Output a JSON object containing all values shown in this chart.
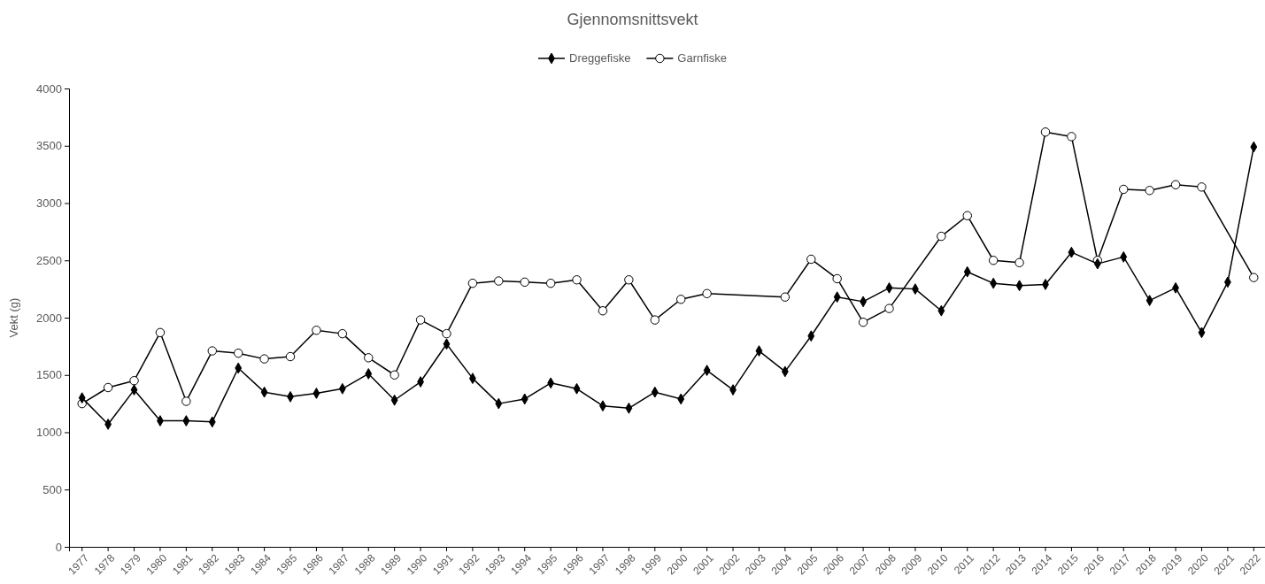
{
  "chart_data": {
    "type": "line",
    "title": "Gjennomsnittsvekt",
    "ylabel": "Vekt (g)",
    "categories": [
      "1977",
      "1978",
      "1979",
      "1980",
      "1981",
      "1982",
      "1983",
      "1984",
      "1985",
      "1986",
      "1987",
      "1988",
      "1989",
      "1990",
      "1991",
      "1992",
      "1993",
      "1994",
      "1995",
      "1996",
      "1997",
      "1998",
      "1999",
      "2000",
      "2001",
      "2002",
      "2003",
      "2004",
      "2005",
      "2006",
      "2007",
      "2008",
      "2009",
      "2010",
      "2011",
      "2012",
      "2013",
      "2014",
      "2015",
      "2016",
      "2017",
      "2018",
      "2019",
      "2020",
      "2021",
      "2022"
    ],
    "series": [
      {
        "name": "Dreggefiske",
        "color": "#000000",
        "marker": "diamond",
        "values": [
          1300,
          1070,
          1370,
          1100,
          1100,
          1090,
          1560,
          1350,
          1310,
          1340,
          1380,
          1510,
          1280,
          1440,
          1770,
          1470,
          1250,
          1290,
          1430,
          1380,
          1230,
          1210,
          1350,
          1290,
          1540,
          1370,
          1710,
          1530,
          1840,
          2180,
          2140,
          2260,
          2250,
          2060,
          2400,
          2300,
          2280,
          2290,
          2570,
          2470,
          2530,
          2150,
          2260,
          1870,
          2310,
          3490
        ]
      },
      {
        "name": "Garnfiske",
        "color": "#000000",
        "marker": "circle",
        "values": [
          1250,
          1390,
          1450,
          1870,
          1270,
          1710,
          1690,
          1640,
          1660,
          1890,
          1860,
          1650,
          1500,
          1980,
          1860,
          2300,
          2320,
          2310,
          2300,
          2330,
          2060,
          2330,
          1980,
          2160,
          2210,
          null,
          null,
          2180,
          2510,
          2340,
          1960,
          2080,
          null,
          2710,
          2890,
          2500,
          2480,
          3620,
          3580,
          2500,
          3120,
          3110,
          3160,
          3140,
          null,
          2350
        ]
      }
    ],
    "ylim": [
      0,
      4000
    ],
    "yticks": [
      0,
      500,
      1000,
      1500,
      2000,
      2500,
      3000,
      3500,
      4000
    ],
    "grid": false,
    "legend": "top",
    "line_style": "solid"
  }
}
